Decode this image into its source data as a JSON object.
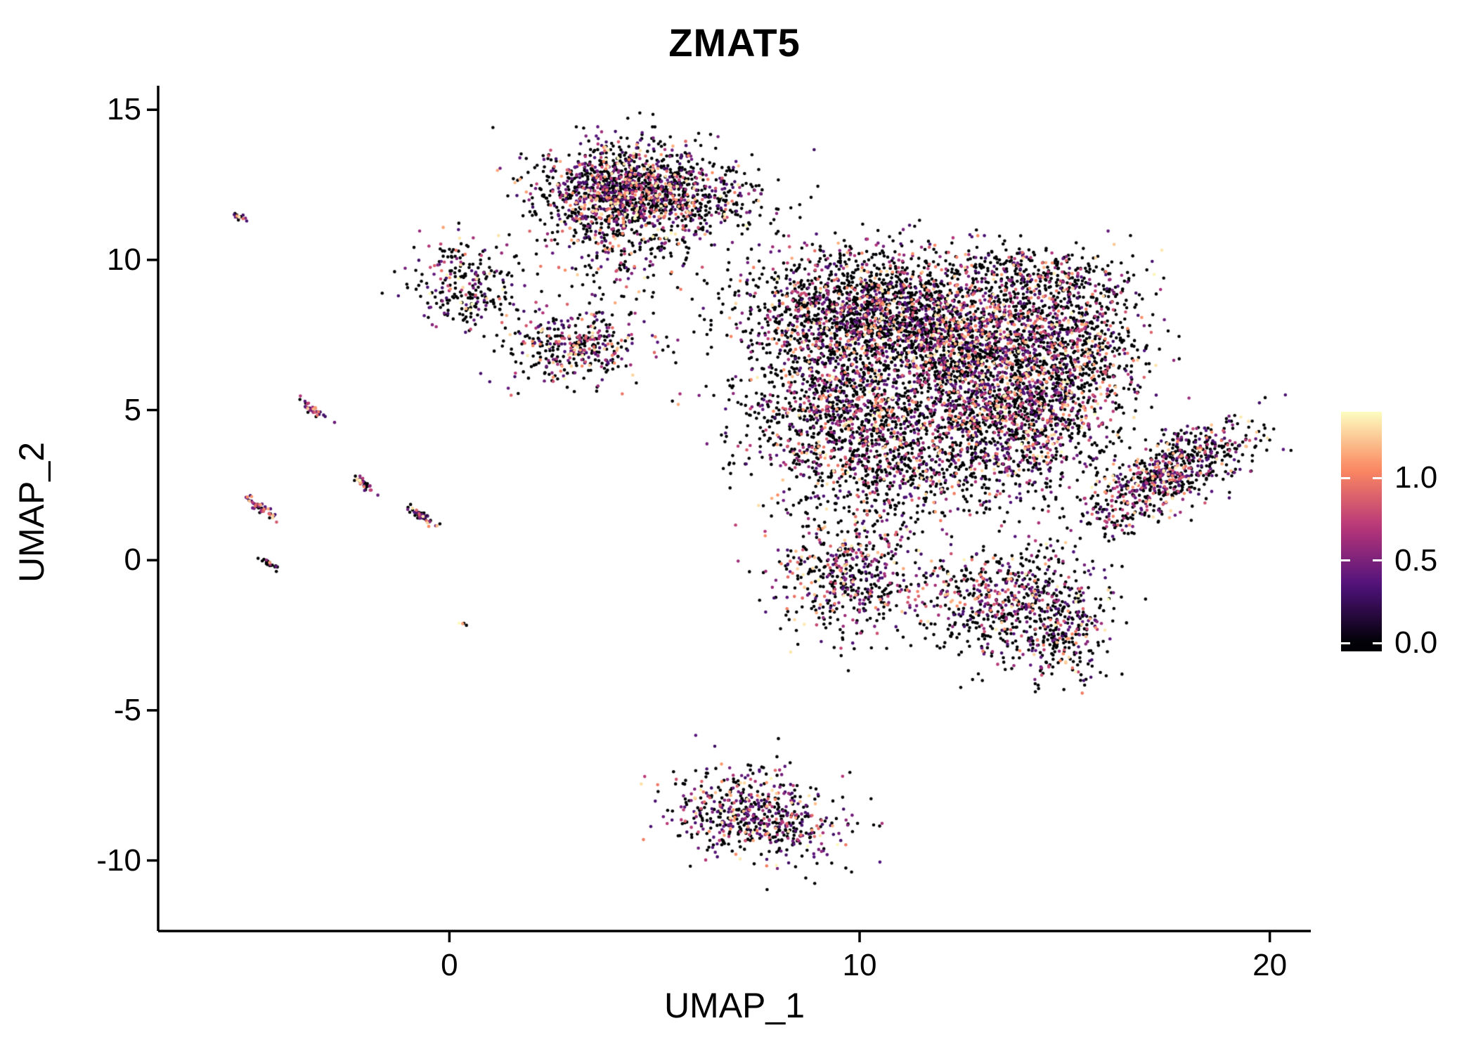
{
  "title": "ZMAT5",
  "background": "#ffffff",
  "text_color": "#000000",
  "axes": {
    "x": {
      "label": "UMAP_1",
      "ticks": [
        0,
        10,
        20
      ],
      "range": [
        -7.1,
        21.0
      ]
    },
    "y": {
      "label": "UMAP_2",
      "ticks": [
        -10,
        -5,
        0,
        5,
        10,
        15
      ],
      "range": [
        -12.35,
        15.8
      ]
    }
  },
  "colorbar": {
    "domain": [
      -0.05,
      1.4
    ],
    "ticks": [
      {
        "value": 1.0,
        "label": "1.0"
      },
      {
        "value": 0.5,
        "label": "0.5"
      },
      {
        "value": 0.0,
        "label": "0.0"
      }
    ]
  },
  "chart_data": {
    "type": "scatter",
    "title": "ZMAT5",
    "xlabel": "UMAP_1",
    "ylabel": "UMAP_2",
    "xlim": [
      -7.1,
      21.0
    ],
    "ylim": [
      -12.35,
      15.8
    ],
    "x_ticks": [
      0,
      10,
      20
    ],
    "y_ticks": [
      -10,
      -5,
      0,
      5,
      10,
      15
    ],
    "grid": false,
    "legend_position": "right",
    "point_radius": 2.3,
    "seed": 42,
    "expression_value_range": [
      0.0,
      1.4
    ],
    "color_scale": {
      "name": "magma",
      "stops": [
        [
          0.0,
          "#000004"
        ],
        [
          0.25,
          "#50127b"
        ],
        [
          0.5,
          "#b63679"
        ],
        [
          0.75,
          "#fb8861"
        ],
        [
          1.0,
          "#fcfdbf"
        ]
      ]
    },
    "clusters": [
      {
        "name": "top-center",
        "cx": 4.4,
        "cy": 12.3,
        "sx": 1.15,
        "sy": 0.75,
        "angle": 0,
        "n": 1400,
        "pos": 0.45
      },
      {
        "name": "top-center-tail",
        "cx": 4.2,
        "cy": 10.6,
        "sx": 0.8,
        "sy": 1.0,
        "angle": 0,
        "n": 260,
        "pos": 0.35
      },
      {
        "name": "top-bridge",
        "cx": 6.6,
        "cy": 11.9,
        "sx": 1.0,
        "sy": 0.7,
        "angle": 0,
        "n": 150,
        "pos": 0.25
      },
      {
        "name": "upper-left",
        "cx": 0.4,
        "cy": 9.2,
        "sx": 0.65,
        "sy": 0.75,
        "angle": 0,
        "n": 260,
        "pos": 0.4
      },
      {
        "name": "mid-left",
        "cx": 3.1,
        "cy": 7.1,
        "sx": 0.85,
        "sy": 0.6,
        "angle": 0,
        "n": 380,
        "pos": 0.5
      },
      {
        "name": "main-nw",
        "cx": 10.3,
        "cy": 8.4,
        "sx": 1.7,
        "sy": 1.0,
        "angle": 0,
        "n": 1700,
        "pos": 0.35
      },
      {
        "name": "main-e",
        "cx": 13.0,
        "cy": 6.9,
        "sx": 1.5,
        "sy": 1.3,
        "angle": 0,
        "n": 1900,
        "pos": 0.45
      },
      {
        "name": "main-w",
        "cx": 9.4,
        "cy": 5.0,
        "sx": 1.2,
        "sy": 1.5,
        "angle": 0,
        "n": 1100,
        "pos": 0.4
      },
      {
        "name": "main-s",
        "cx": 11.6,
        "cy": 3.6,
        "sx": 1.6,
        "sy": 1.2,
        "angle": 0,
        "n": 900,
        "pos": 0.35
      },
      {
        "name": "main-se",
        "cx": 14.0,
        "cy": 4.6,
        "sx": 1.1,
        "sy": 1.1,
        "angle": 0,
        "n": 700,
        "pos": 0.4
      },
      {
        "name": "main-arm-east",
        "cx": 15.5,
        "cy": 7.3,
        "sx": 0.7,
        "sy": 1.4,
        "angle": 0,
        "n": 450,
        "pos": 0.35
      },
      {
        "name": "main-arm-top",
        "cx": 14.6,
        "cy": 9.4,
        "sx": 1.1,
        "sy": 0.45,
        "angle": -15,
        "n": 260,
        "pos": 0.3
      },
      {
        "name": "south-lobe-west",
        "cx": 9.8,
        "cy": -0.4,
        "sx": 0.85,
        "sy": 1.0,
        "angle": 0,
        "n": 520,
        "pos": 0.45
      },
      {
        "name": "south-lobe-east",
        "cx": 13.6,
        "cy": -1.3,
        "sx": 1.2,
        "sy": 0.9,
        "angle": 0,
        "n": 650,
        "pos": 0.4
      },
      {
        "name": "south-tail",
        "cx": 15.0,
        "cy": -2.6,
        "sx": 0.6,
        "sy": 0.7,
        "angle": 0,
        "n": 220,
        "pos": 0.4
      },
      {
        "name": "right-wing",
        "cx": 17.5,
        "cy": 2.8,
        "sx": 1.25,
        "sy": 0.5,
        "angle": 38,
        "n": 750,
        "pos": 0.45
      },
      {
        "name": "bottom-island",
        "cx": 7.5,
        "cy": -8.5,
        "sx": 1.05,
        "sy": 0.75,
        "angle": -20,
        "n": 620,
        "pos": 0.5
      },
      {
        "name": "streak-1",
        "cx": -5.1,
        "cy": 11.4,
        "sx": 0.12,
        "sy": 0.04,
        "angle": -40,
        "n": 14,
        "pos": 0.7
      },
      {
        "name": "streak-2",
        "cx": -3.35,
        "cy": 5.05,
        "sx": 0.22,
        "sy": 0.05,
        "angle": -45,
        "n": 40,
        "pos": 0.7
      },
      {
        "name": "streak-3",
        "cx": -4.62,
        "cy": 1.78,
        "sx": 0.26,
        "sy": 0.06,
        "angle": -45,
        "n": 50,
        "pos": 0.75
      },
      {
        "name": "streak-4",
        "cx": -2.1,
        "cy": 2.55,
        "sx": 0.18,
        "sy": 0.05,
        "angle": -50,
        "n": 35,
        "pos": 0.7
      },
      {
        "name": "streak-5",
        "cx": -0.7,
        "cy": 1.5,
        "sx": 0.26,
        "sy": 0.06,
        "angle": -42,
        "n": 45,
        "pos": 0.6
      },
      {
        "name": "streak-6",
        "cx": -4.42,
        "cy": -0.1,
        "sx": 0.13,
        "sy": 0.04,
        "angle": -40,
        "n": 22,
        "pos": 0.12
      },
      {
        "name": "lone-dot",
        "cx": 0.33,
        "cy": -2.1,
        "sx": 0.05,
        "sy": 0.05,
        "angle": 0,
        "n": 4,
        "pos": 0.8
      }
    ]
  }
}
